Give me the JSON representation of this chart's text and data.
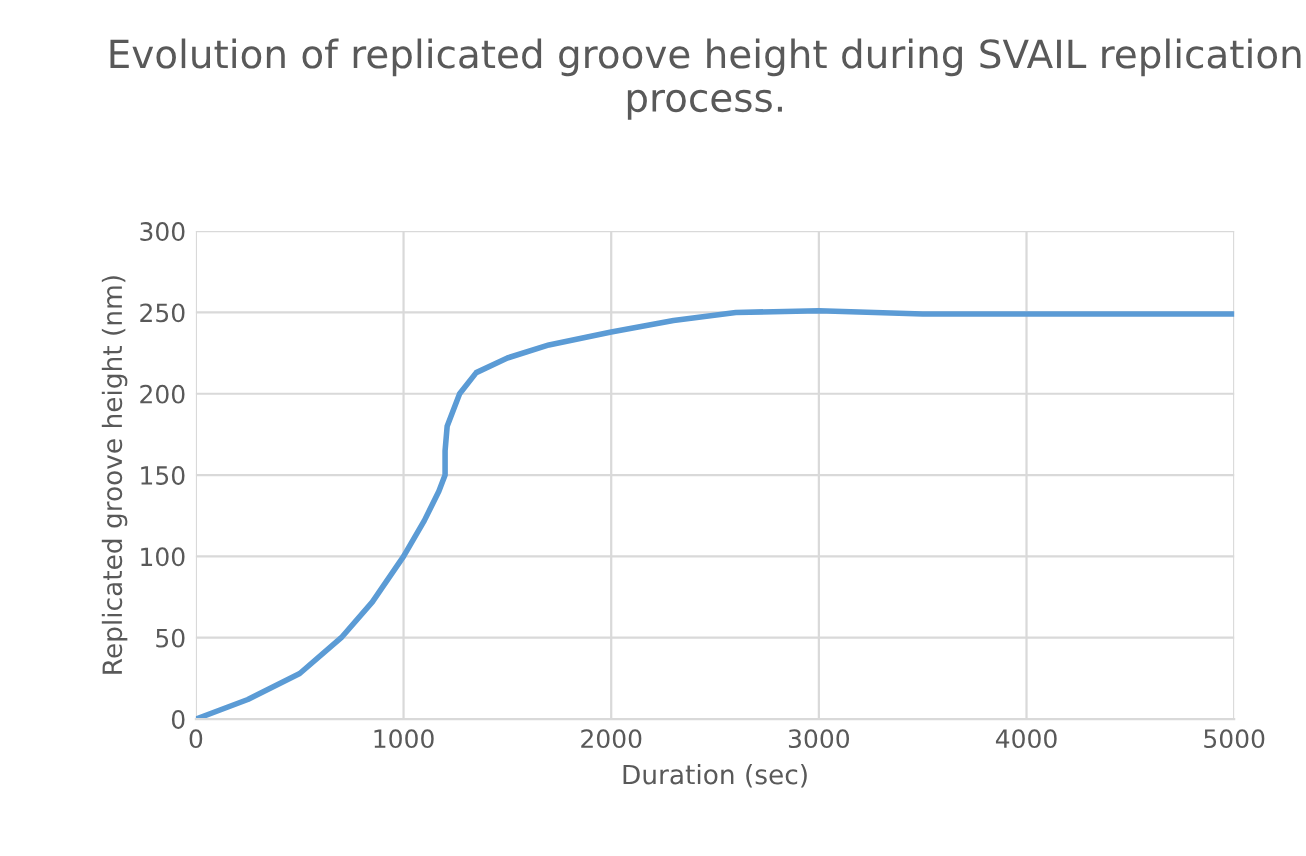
{
  "chart_data": {
    "type": "line",
    "title": "Evolution of replicated groove height during SVAIL replication process.",
    "xlabel": "Duration (sec)",
    "ylabel": "Replicated groove height (nm)",
    "series": [
      {
        "color": "#5b9bd5",
        "x": [
          0,
          250,
          500,
          700,
          850,
          1000,
          1100,
          1170,
          1200,
          1200,
          1210,
          1270,
          1350,
          1500,
          1700,
          2000,
          2300,
          2600,
          3000,
          3500,
          4000,
          5000
        ],
        "values": [
          0,
          12,
          28,
          50,
          72,
          100,
          122,
          140,
          150,
          165,
          180,
          200,
          213,
          222,
          230,
          238,
          245,
          250,
          251,
          249,
          249,
          249
        ]
      }
    ],
    "xlim": [
      0,
      5000
    ],
    "xticks": [
      0,
      1000,
      2000,
      3000,
      4000,
      5000
    ],
    "ylim": [
      0,
      300
    ],
    "yticks": [
      0,
      50,
      100,
      150,
      200,
      250,
      300
    ],
    "grid": true,
    "legend": false,
    "marker": "none",
    "line_style": "solid"
  }
}
